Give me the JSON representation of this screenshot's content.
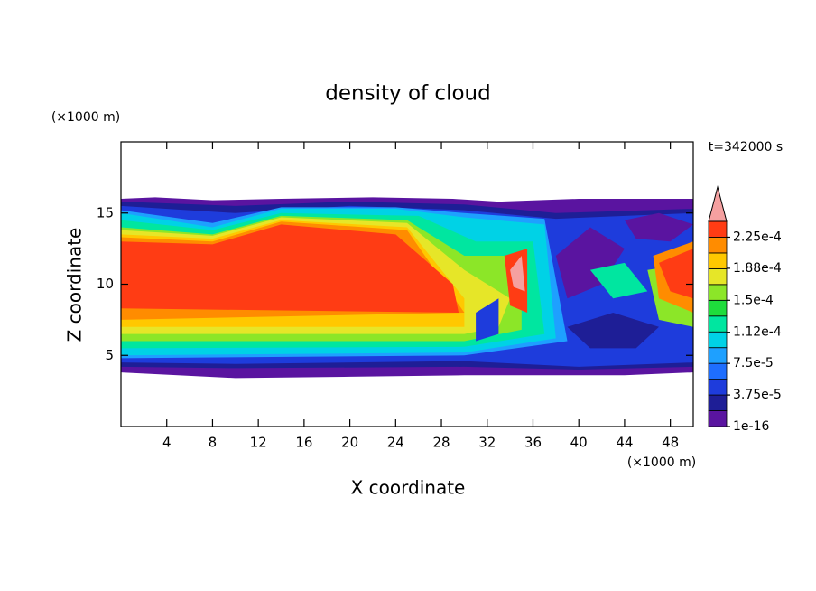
{
  "chart_data": {
    "type": "contour",
    "title": "density of cloud",
    "x_label": "X coordinate",
    "y_label": "Z coordinate",
    "x_unit": "(×1000 m)",
    "y_unit": "(×1000 m)",
    "time_label": "t=342000 s",
    "xlim": [
      0,
      50
    ],
    "ylim": [
      0,
      20
    ],
    "xticks": [
      4,
      8,
      12,
      16,
      20,
      24,
      28,
      32,
      36,
      40,
      44,
      48
    ],
    "yticks": [
      5,
      10,
      15
    ],
    "levels": [
      1e-16,
      1.875e-05,
      3.75e-05,
      5.625e-05,
      7.5e-05,
      9.375e-05,
      0.0001125,
      0.00013125,
      0.00015,
      0.00016875,
      0.0001875,
      0.00020625,
      0.000225,
      0.00024375
    ],
    "colors": [
      "#5a14a0",
      "#1e1e96",
      "#1e3cdc",
      "#1e6eff",
      "#1ea0ff",
      "#00d2e6",
      "#00e6a0",
      "#1edc3c",
      "#8ce628",
      "#e6e628",
      "#ffc800",
      "#ff8c00",
      "#ff3c14"
    ],
    "extend_color": "#f5a0a0",
    "colorbar_ticks": [
      {
        "value": 1e-16,
        "label": "1e-16"
      },
      {
        "value": 3.75e-05,
        "label": "3.75e-5"
      },
      {
        "value": 7.5e-05,
        "label": "7.5e-5"
      },
      {
        "value": 0.000112,
        "label": "1.12e-4"
      },
      {
        "value": 0.00015,
        "label": "1.5e-4"
      },
      {
        "value": 0.000188,
        "label": "1.88e-4"
      },
      {
        "value": 0.000225,
        "label": "2.25e-4"
      }
    ]
  }
}
